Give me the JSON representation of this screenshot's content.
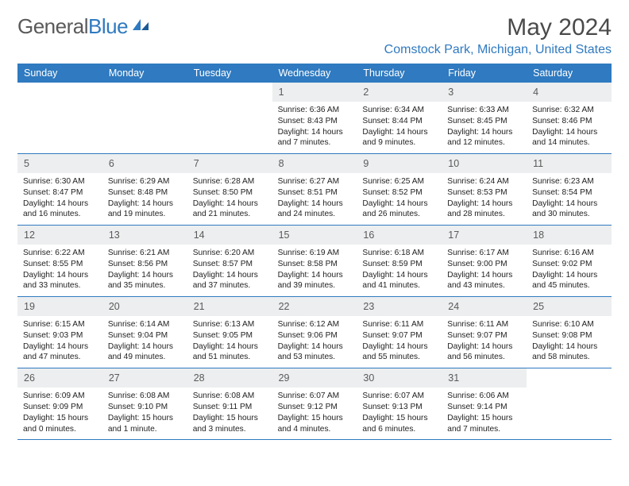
{
  "logo": {
    "text_gray": "General",
    "text_blue": "Blue"
  },
  "header": {
    "month_title": "May 2024",
    "location": "Comstock Park, Michigan, United States"
  },
  "colors": {
    "header_bg": "#2f7ac0",
    "header_text": "#ffffff",
    "daynum_bg": "#eceeef",
    "border": "#2f7ac0",
    "logo_gray": "#5a5a5a",
    "logo_blue": "#2f7ac0"
  },
  "day_names": [
    "Sunday",
    "Monday",
    "Tuesday",
    "Wednesday",
    "Thursday",
    "Friday",
    "Saturday"
  ],
  "weeks": [
    [
      {
        "empty": true
      },
      {
        "empty": true
      },
      {
        "empty": true
      },
      {
        "day": "1",
        "sunrise": "Sunrise: 6:36 AM",
        "sunset": "Sunset: 8:43 PM",
        "daylight": "Daylight: 14 hours and 7 minutes."
      },
      {
        "day": "2",
        "sunrise": "Sunrise: 6:34 AM",
        "sunset": "Sunset: 8:44 PM",
        "daylight": "Daylight: 14 hours and 9 minutes."
      },
      {
        "day": "3",
        "sunrise": "Sunrise: 6:33 AM",
        "sunset": "Sunset: 8:45 PM",
        "daylight": "Daylight: 14 hours and 12 minutes."
      },
      {
        "day": "4",
        "sunrise": "Sunrise: 6:32 AM",
        "sunset": "Sunset: 8:46 PM",
        "daylight": "Daylight: 14 hours and 14 minutes."
      }
    ],
    [
      {
        "day": "5",
        "sunrise": "Sunrise: 6:30 AM",
        "sunset": "Sunset: 8:47 PM",
        "daylight": "Daylight: 14 hours and 16 minutes."
      },
      {
        "day": "6",
        "sunrise": "Sunrise: 6:29 AM",
        "sunset": "Sunset: 8:48 PM",
        "daylight": "Daylight: 14 hours and 19 minutes."
      },
      {
        "day": "7",
        "sunrise": "Sunrise: 6:28 AM",
        "sunset": "Sunset: 8:50 PM",
        "daylight": "Daylight: 14 hours and 21 minutes."
      },
      {
        "day": "8",
        "sunrise": "Sunrise: 6:27 AM",
        "sunset": "Sunset: 8:51 PM",
        "daylight": "Daylight: 14 hours and 24 minutes."
      },
      {
        "day": "9",
        "sunrise": "Sunrise: 6:25 AM",
        "sunset": "Sunset: 8:52 PM",
        "daylight": "Daylight: 14 hours and 26 minutes."
      },
      {
        "day": "10",
        "sunrise": "Sunrise: 6:24 AM",
        "sunset": "Sunset: 8:53 PM",
        "daylight": "Daylight: 14 hours and 28 minutes."
      },
      {
        "day": "11",
        "sunrise": "Sunrise: 6:23 AM",
        "sunset": "Sunset: 8:54 PM",
        "daylight": "Daylight: 14 hours and 30 minutes."
      }
    ],
    [
      {
        "day": "12",
        "sunrise": "Sunrise: 6:22 AM",
        "sunset": "Sunset: 8:55 PM",
        "daylight": "Daylight: 14 hours and 33 minutes."
      },
      {
        "day": "13",
        "sunrise": "Sunrise: 6:21 AM",
        "sunset": "Sunset: 8:56 PM",
        "daylight": "Daylight: 14 hours and 35 minutes."
      },
      {
        "day": "14",
        "sunrise": "Sunrise: 6:20 AM",
        "sunset": "Sunset: 8:57 PM",
        "daylight": "Daylight: 14 hours and 37 minutes."
      },
      {
        "day": "15",
        "sunrise": "Sunrise: 6:19 AM",
        "sunset": "Sunset: 8:58 PM",
        "daylight": "Daylight: 14 hours and 39 minutes."
      },
      {
        "day": "16",
        "sunrise": "Sunrise: 6:18 AM",
        "sunset": "Sunset: 8:59 PM",
        "daylight": "Daylight: 14 hours and 41 minutes."
      },
      {
        "day": "17",
        "sunrise": "Sunrise: 6:17 AM",
        "sunset": "Sunset: 9:00 PM",
        "daylight": "Daylight: 14 hours and 43 minutes."
      },
      {
        "day": "18",
        "sunrise": "Sunrise: 6:16 AM",
        "sunset": "Sunset: 9:02 PM",
        "daylight": "Daylight: 14 hours and 45 minutes."
      }
    ],
    [
      {
        "day": "19",
        "sunrise": "Sunrise: 6:15 AM",
        "sunset": "Sunset: 9:03 PM",
        "daylight": "Daylight: 14 hours and 47 minutes."
      },
      {
        "day": "20",
        "sunrise": "Sunrise: 6:14 AM",
        "sunset": "Sunset: 9:04 PM",
        "daylight": "Daylight: 14 hours and 49 minutes."
      },
      {
        "day": "21",
        "sunrise": "Sunrise: 6:13 AM",
        "sunset": "Sunset: 9:05 PM",
        "daylight": "Daylight: 14 hours and 51 minutes."
      },
      {
        "day": "22",
        "sunrise": "Sunrise: 6:12 AM",
        "sunset": "Sunset: 9:06 PM",
        "daylight": "Daylight: 14 hours and 53 minutes."
      },
      {
        "day": "23",
        "sunrise": "Sunrise: 6:11 AM",
        "sunset": "Sunset: 9:07 PM",
        "daylight": "Daylight: 14 hours and 55 minutes."
      },
      {
        "day": "24",
        "sunrise": "Sunrise: 6:11 AM",
        "sunset": "Sunset: 9:07 PM",
        "daylight": "Daylight: 14 hours and 56 minutes."
      },
      {
        "day": "25",
        "sunrise": "Sunrise: 6:10 AM",
        "sunset": "Sunset: 9:08 PM",
        "daylight": "Daylight: 14 hours and 58 minutes."
      }
    ],
    [
      {
        "day": "26",
        "sunrise": "Sunrise: 6:09 AM",
        "sunset": "Sunset: 9:09 PM",
        "daylight": "Daylight: 15 hours and 0 minutes."
      },
      {
        "day": "27",
        "sunrise": "Sunrise: 6:08 AM",
        "sunset": "Sunset: 9:10 PM",
        "daylight": "Daylight: 15 hours and 1 minute."
      },
      {
        "day": "28",
        "sunrise": "Sunrise: 6:08 AM",
        "sunset": "Sunset: 9:11 PM",
        "daylight": "Daylight: 15 hours and 3 minutes."
      },
      {
        "day": "29",
        "sunrise": "Sunrise: 6:07 AM",
        "sunset": "Sunset: 9:12 PM",
        "daylight": "Daylight: 15 hours and 4 minutes."
      },
      {
        "day": "30",
        "sunrise": "Sunrise: 6:07 AM",
        "sunset": "Sunset: 9:13 PM",
        "daylight": "Daylight: 15 hours and 6 minutes."
      },
      {
        "day": "31",
        "sunrise": "Sunrise: 6:06 AM",
        "sunset": "Sunset: 9:14 PM",
        "daylight": "Daylight: 15 hours and 7 minutes."
      },
      {
        "empty": true
      }
    ]
  ]
}
